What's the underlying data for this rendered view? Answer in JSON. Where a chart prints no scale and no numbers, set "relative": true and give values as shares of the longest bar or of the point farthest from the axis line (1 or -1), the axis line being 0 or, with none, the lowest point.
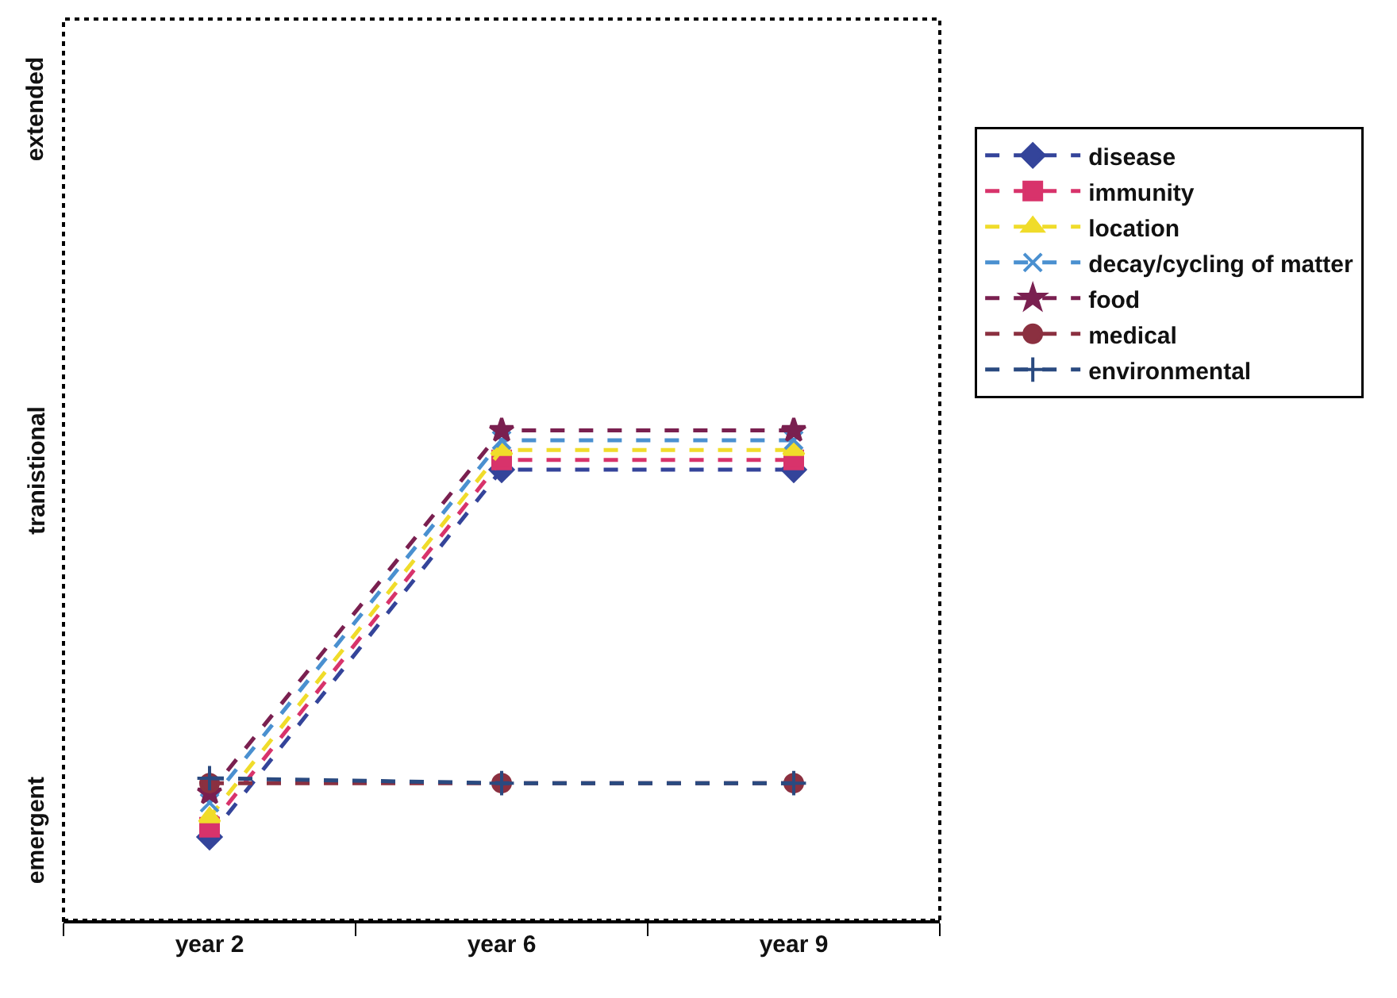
{
  "chart_data": {
    "type": "line",
    "categories": [
      "year 2",
      "year 6",
      "year 9"
    ],
    "relative": true,
    "annotations": [
      "emergent",
      "tranistional",
      "extended"
    ],
    "grid": false,
    "legend": "right",
    "line_style": "dashed",
    "series": [
      {
        "name": "disease",
        "color": "#34449a",
        "marker": "diamond",
        "values": [
          0.17,
          0.92,
          0.92
        ]
      },
      {
        "name": "immunity",
        "color": "#d8336b",
        "marker": "square",
        "values": [
          0.19,
          0.94,
          0.94
        ]
      },
      {
        "name": "location",
        "color": "#f0dc2a",
        "marker": "triangle",
        "values": [
          0.21,
          0.96,
          0.96
        ]
      },
      {
        "name": "decay/cycling of matter",
        "color": "#4a90d0",
        "marker": "cross",
        "values": [
          0.24,
          0.98,
          0.98
        ]
      },
      {
        "name": "food",
        "color": "#7a2050",
        "marker": "star",
        "values": [
          0.26,
          1,
          1
        ]
      },
      {
        "name": "medical",
        "color": "#8b3040",
        "marker": "circle",
        "values": [
          0.28,
          0.28,
          0.28
        ]
      },
      {
        "name": "environmental",
        "color": "#2a4a80",
        "marker": "plus",
        "values": [
          0.29,
          0.28,
          0.28
        ]
      }
    ]
  }
}
